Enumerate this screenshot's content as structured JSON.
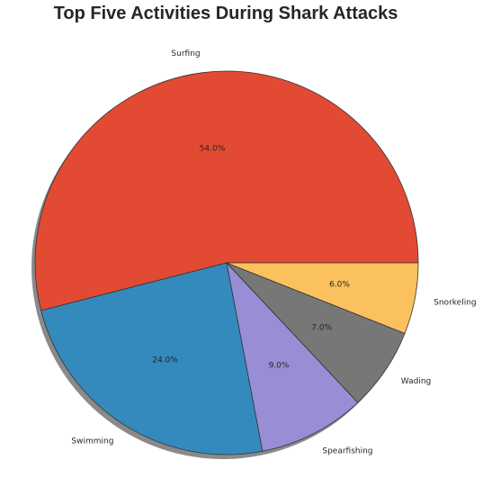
{
  "chart_data": {
    "type": "pie",
    "title": "Top Five Activities During Shark Attacks",
    "categories": [
      "Surfing",
      "Swimming",
      "Spearfishing",
      "Wading",
      "Snorkeling"
    ],
    "values": [
      54.0,
      24.0,
      9.0,
      7.0,
      6.0
    ],
    "percent_labels": [
      "54.0%",
      "24.0%",
      "9.0%",
      "7.0%",
      "6.0%"
    ],
    "colors": [
      "#E24A33",
      "#348ABD",
      "#988ED5",
      "#777777",
      "#FBC15E"
    ],
    "start_angle_deg": 0,
    "direction": "counterclockwise",
    "shadow": true,
    "legend": "none"
  }
}
